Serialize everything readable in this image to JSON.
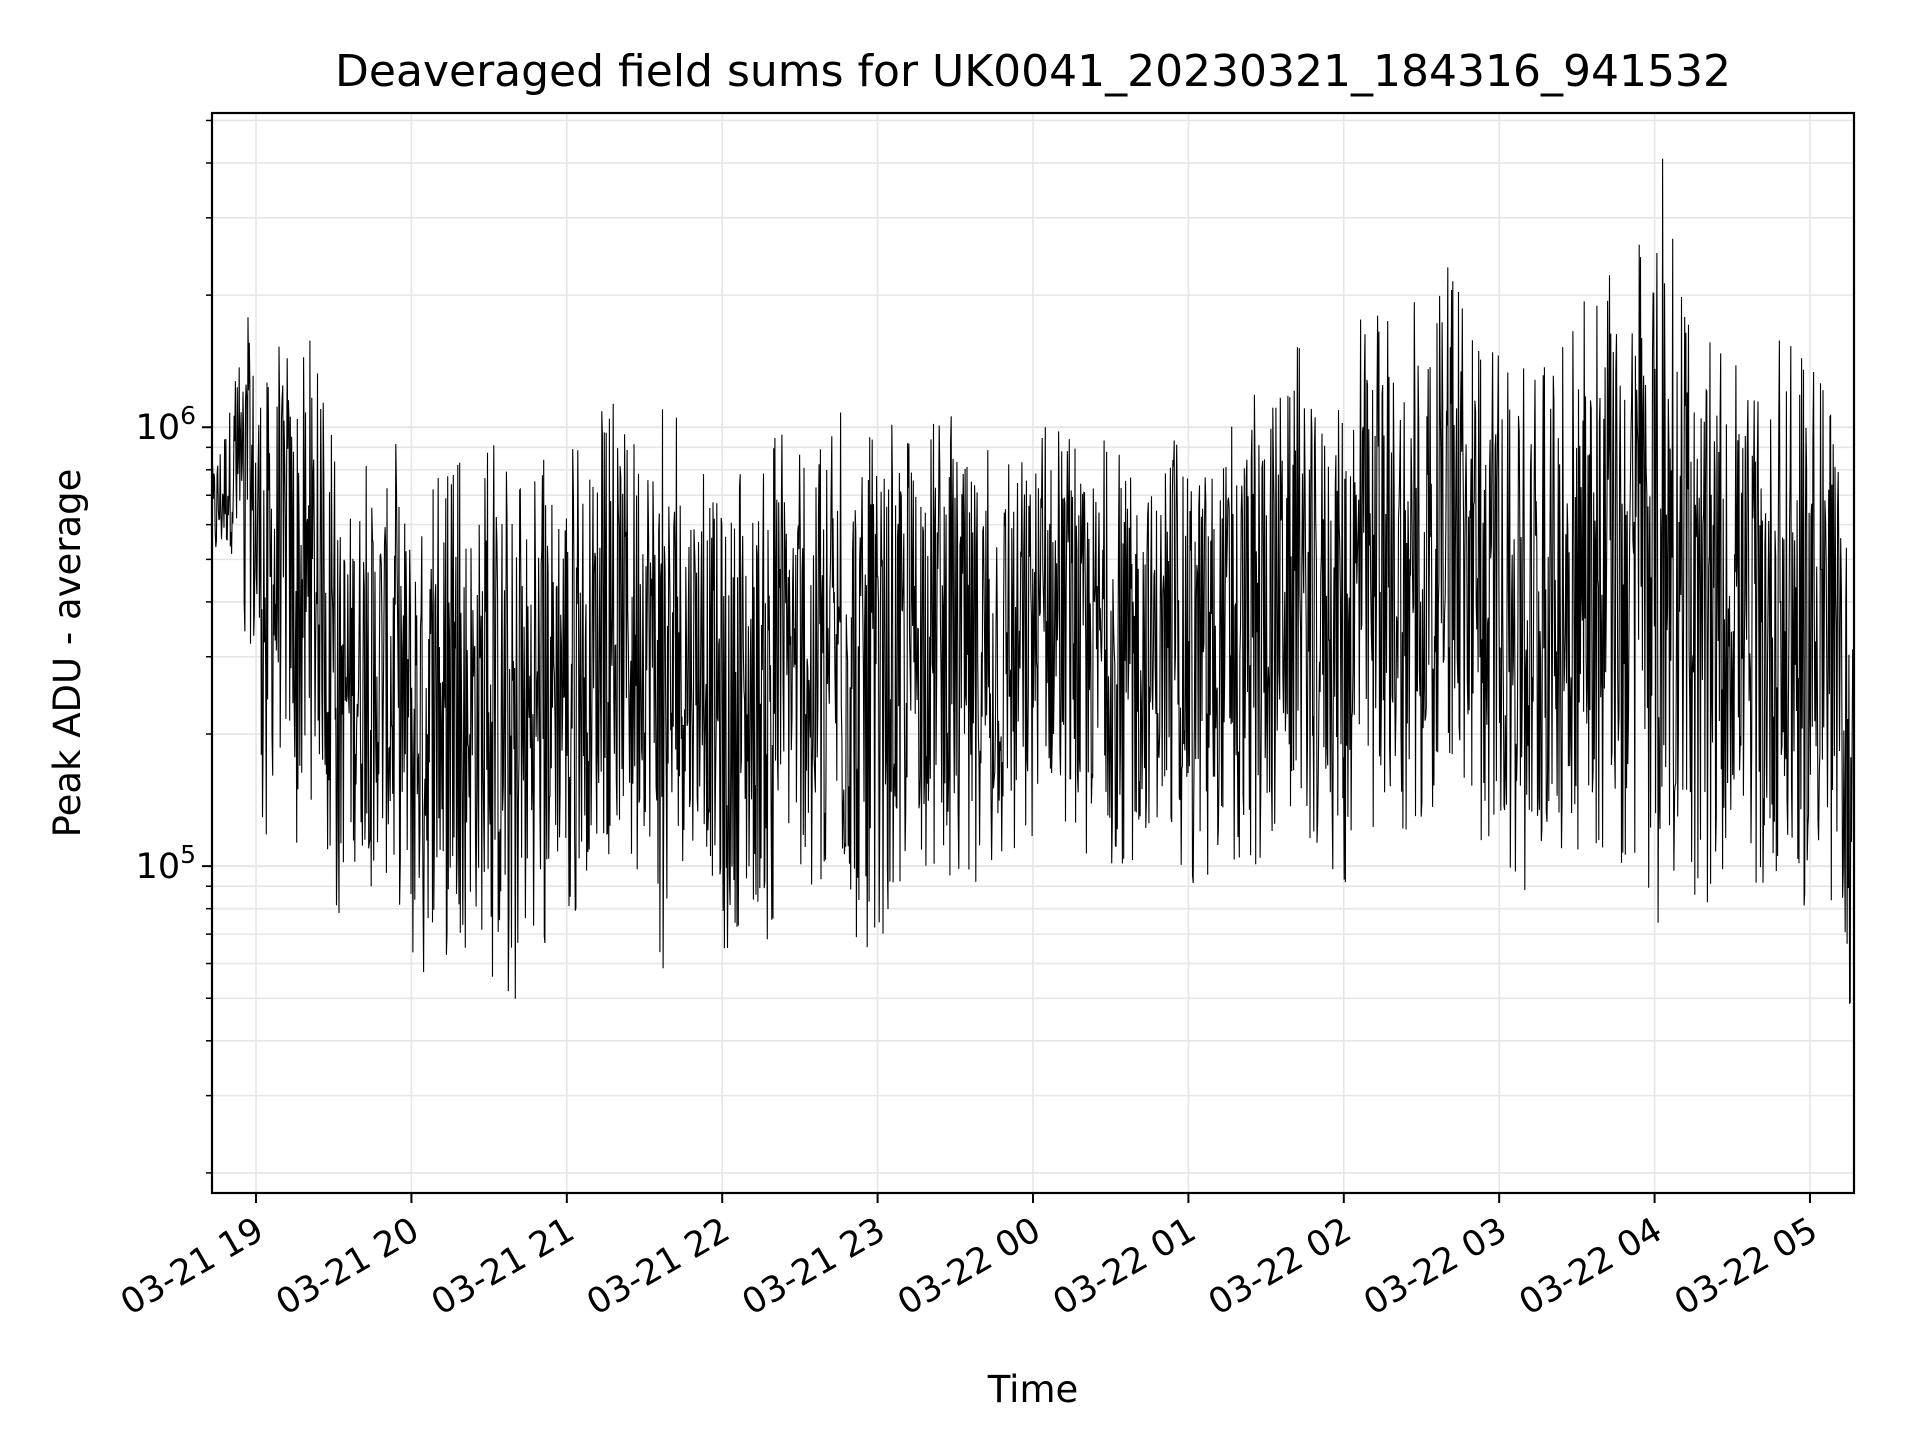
{
  "chart_data": {
    "type": "line",
    "title": "Deaveraged field sums for UK0041_20230321_184316_941532",
    "xlabel": "Time",
    "ylabel": "Peak ADU - average",
    "y_scale": "log",
    "xlim": [
      "2023-03-21 18:43",
      "2023-03-22 05:17"
    ],
    "ylim": [
      18000,
      5200000
    ],
    "x_ticks": [
      "03-21 19",
      "03-21 20",
      "03-21 21",
      "03-21 22",
      "03-21 23",
      "03-22 00",
      "03-22 01",
      "03-22 02",
      "03-22 03",
      "03-22 04",
      "03-22 05"
    ],
    "y_ticks": [
      {
        "value": 100000,
        "base": "10",
        "exp": "5"
      },
      {
        "value": 1000000,
        "base": "10",
        "exp": "6"
      }
    ],
    "grid": true,
    "line_color": "#000000",
    "series": [
      {
        "x": [
          "2023-03-21 18:43",
          "2023-03-21 18:50",
          "2023-03-21 18:57",
          "2023-03-21 19:04",
          "2023-03-21 19:11",
          "2023-03-21 19:18",
          "2023-03-21 19:25",
          "2023-03-21 19:32",
          "2023-03-21 19:39",
          "2023-03-21 19:46",
          "2023-03-21 19:53",
          "2023-03-21 20:00",
          "2023-03-21 20:07",
          "2023-03-21 20:14",
          "2023-03-21 20:21",
          "2023-03-21 20:28",
          "2023-03-21 20:35",
          "2023-03-21 20:42",
          "2023-03-21 20:49",
          "2023-03-21 20:56",
          "2023-03-21 21:03",
          "2023-03-21 21:10",
          "2023-03-21 21:17",
          "2023-03-21 21:24",
          "2023-03-21 21:31",
          "2023-03-21 21:38",
          "2023-03-21 21:45",
          "2023-03-21 21:52",
          "2023-03-21 21:59",
          "2023-03-21 22:06",
          "2023-03-21 22:13",
          "2023-03-21 22:20",
          "2023-03-21 22:27",
          "2023-03-21 22:34",
          "2023-03-21 22:41",
          "2023-03-21 22:48",
          "2023-03-21 22:55",
          "2023-03-21 23:02",
          "2023-03-21 23:09",
          "2023-03-21 23:16",
          "2023-03-21 23:23",
          "2023-03-21 23:30",
          "2023-03-21 23:37",
          "2023-03-21 23:44",
          "2023-03-21 23:51",
          "2023-03-21 23:58",
          "2023-03-22 00:05",
          "2023-03-22 00:12",
          "2023-03-22 00:19",
          "2023-03-22 00:26",
          "2023-03-22 00:33",
          "2023-03-22 00:40",
          "2023-03-22 00:47",
          "2023-03-22 00:54",
          "2023-03-22 01:01",
          "2023-03-22 01:08",
          "2023-03-22 01:15",
          "2023-03-22 01:22",
          "2023-03-22 01:29",
          "2023-03-22 01:36",
          "2023-03-22 01:43",
          "2023-03-22 01:50",
          "2023-03-22 01:57",
          "2023-03-22 02:04",
          "2023-03-22 02:11",
          "2023-03-22 02:18",
          "2023-03-22 02:25",
          "2023-03-22 02:32",
          "2023-03-22 02:39",
          "2023-03-22 02:46",
          "2023-03-22 02:53",
          "2023-03-22 03:00",
          "2023-03-22 03:07",
          "2023-03-22 03:14",
          "2023-03-22 03:21",
          "2023-03-22 03:28",
          "2023-03-22 03:35",
          "2023-03-22 03:42",
          "2023-03-22 03:49",
          "2023-03-22 03:56",
          "2023-03-22 04:03",
          "2023-03-22 04:10",
          "2023-03-22 04:17",
          "2023-03-22 04:24",
          "2023-03-22 04:31",
          "2023-03-22 04:38",
          "2023-03-22 04:45",
          "2023-03-22 04:52",
          "2023-03-22 04:59",
          "2023-03-22 05:06",
          "2023-03-22 05:13",
          "2023-03-22 05:17"
        ],
        "y_high": [
          870000,
          1250000,
          1900000,
          1750000,
          1600000,
          1750000,
          1450000,
          750000,
          900000,
          850000,
          1000000,
          800000,
          780000,
          820000,
          850000,
          880000,
          950000,
          800000,
          900000,
          1000000,
          980000,
          1050000,
          1150000,
          1300000,
          1250000,
          1150000,
          1000000,
          900000,
          880000,
          850000,
          900000,
          1000000,
          950000,
          950000,
          900000,
          1400000,
          1000000,
          1050000,
          1000000,
          1150000,
          1450000,
          1150000,
          1000000,
          1050000,
          950000,
          1000000,
          1100000,
          1000000,
          950000,
          950000,
          950000,
          1000000,
          900000,
          950000,
          1000000,
          1100000,
          1100000,
          1200000,
          1500000,
          1600000,
          1600000,
          1350000,
          1400000,
          1900000,
          1800000,
          1900000,
          2000000,
          2200000,
          2400000,
          2000000,
          1600000,
          1500000,
          1400000,
          1450000,
          1550000,
          1800000,
          2000000,
          2300000,
          2500000,
          2700000,
          4500000,
          2000000,
          1700000,
          1600000,
          1400000,
          1300000,
          1600000,
          1700000,
          1600000,
          1300000,
          700000,
          480000
        ],
        "y_low": [
          430000,
          480000,
          300000,
          100000,
          150000,
          90000,
          130000,
          75000,
          80000,
          90000,
          62000,
          58000,
          55000,
          60000,
          65000,
          50000,
          45000,
          44000,
          60000,
          75000,
          78000,
          85000,
          90000,
          95000,
          95000,
          50000,
          80000,
          100000,
          58000,
          55000,
          60000,
          70000,
          95000,
          80000,
          90000,
          60000,
          58000,
          70000,
          90000,
          100000,
          100000,
          90000,
          85000,
          90000,
          100000,
          110000,
          130000,
          100000,
          95000,
          110000,
          95000,
          90000,
          100000,
          110000,
          90000,
          85000,
          105000,
          95000,
          95000,
          130000,
          100000,
          110000,
          95000,
          80000,
          110000,
          130000,
          100000,
          130000,
          140000,
          100000,
          100000,
          95000,
          95000,
          65000,
          100000,
          95000,
          105000,
          100000,
          100000,
          100000,
          60000,
          100000,
          80000,
          75000,
          100000,
          95000,
          75000,
          60000,
          75000,
          75000,
          60000,
          23000
        ]
      }
    ]
  }
}
